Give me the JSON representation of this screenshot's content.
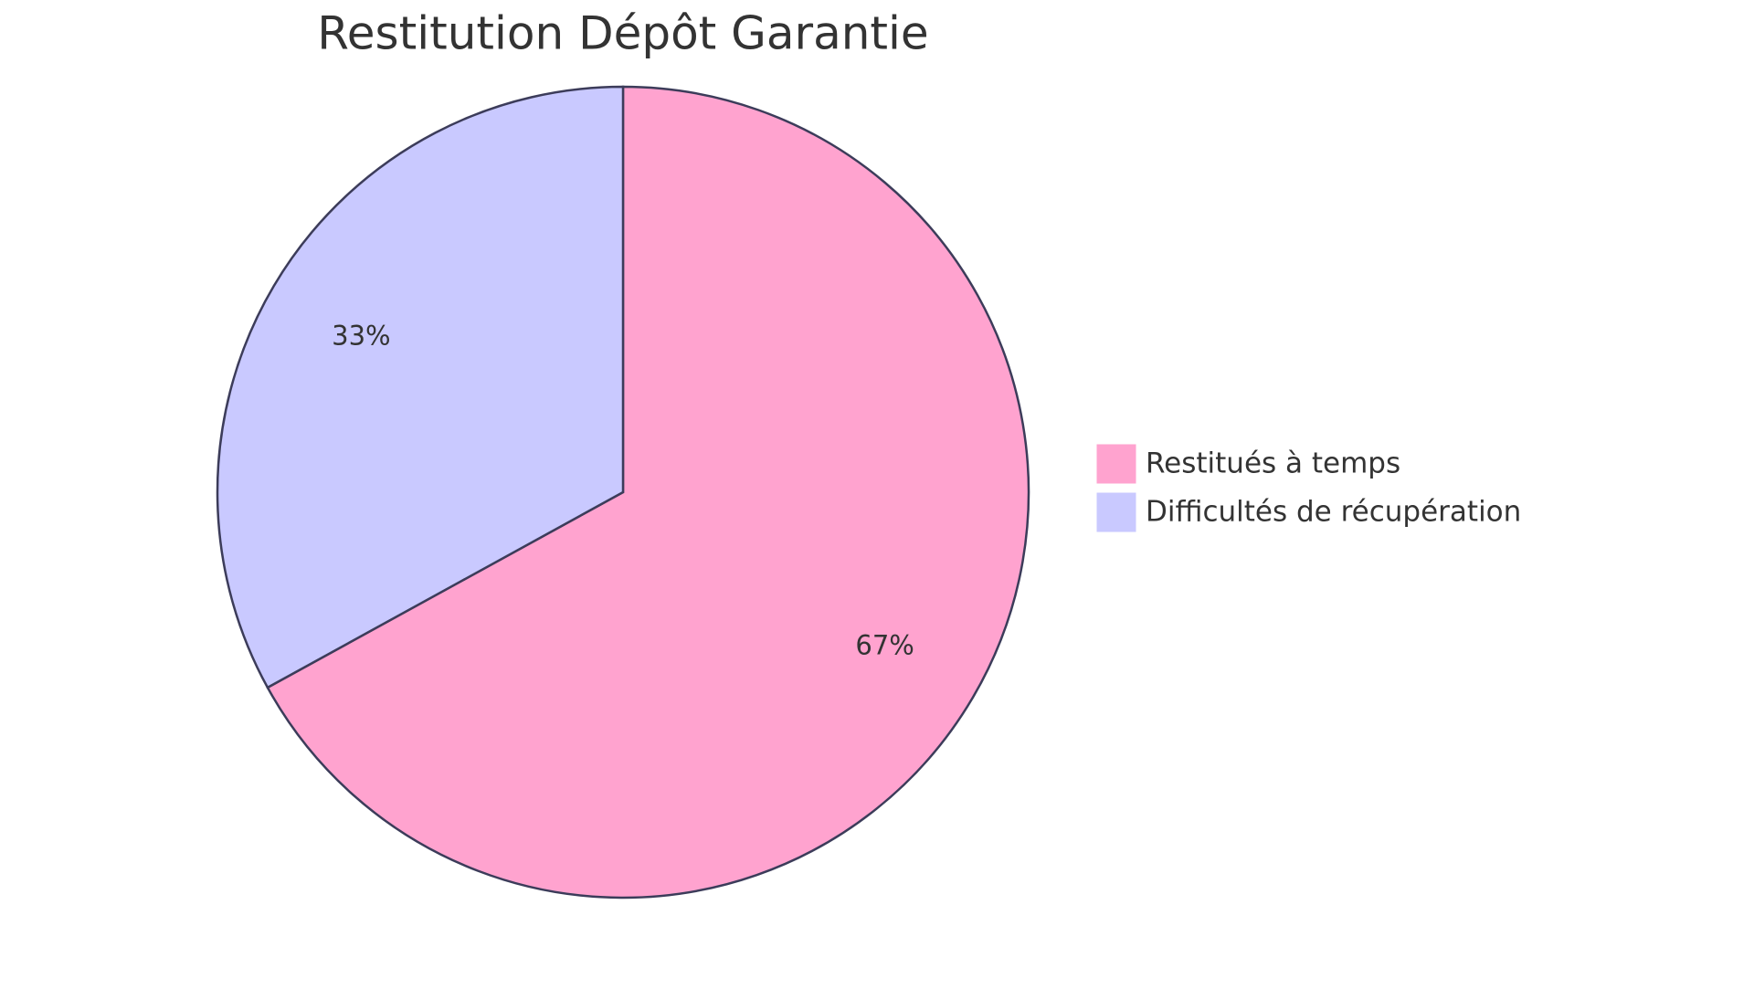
{
  "chart_data": {
    "type": "pie",
    "title": "Restitution Dépôt Garantie",
    "categories": [
      "Restitués à temps",
      "Difficultés de récupération"
    ],
    "values": [
      67,
      33
    ],
    "value_labels": [
      "67%",
      "33%"
    ],
    "colors": [
      "#ffa3cf",
      "#c9c9ff"
    ],
    "legend": "right"
  }
}
